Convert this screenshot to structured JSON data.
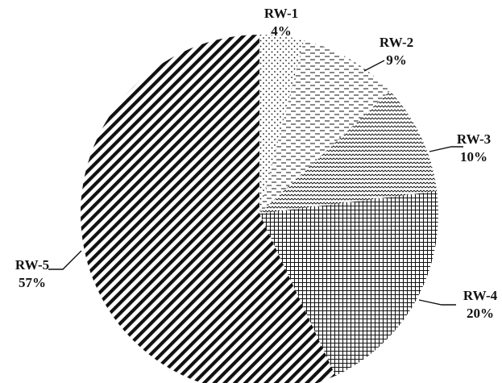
{
  "chart_data": {
    "type": "pie",
    "title": "",
    "start": "12 o'clock",
    "direction": "clockwise",
    "slices": [
      {
        "name": "RW-1",
        "value": 4,
        "label": "4%",
        "pattern": "dots"
      },
      {
        "name": "RW-2",
        "value": 9,
        "label": "9%",
        "pattern": "dashes"
      },
      {
        "name": "RW-3",
        "value": 10,
        "label": "10%",
        "pattern": "waves"
      },
      {
        "name": "RW-4",
        "value": 20,
        "label": "20%",
        "pattern": "grid"
      },
      {
        "name": "RW-5",
        "value": 57,
        "label": "57%",
        "pattern": "diagonal-stripes"
      }
    ],
    "colors": {
      "ink": "#111111",
      "background": "#ffffff"
    }
  }
}
